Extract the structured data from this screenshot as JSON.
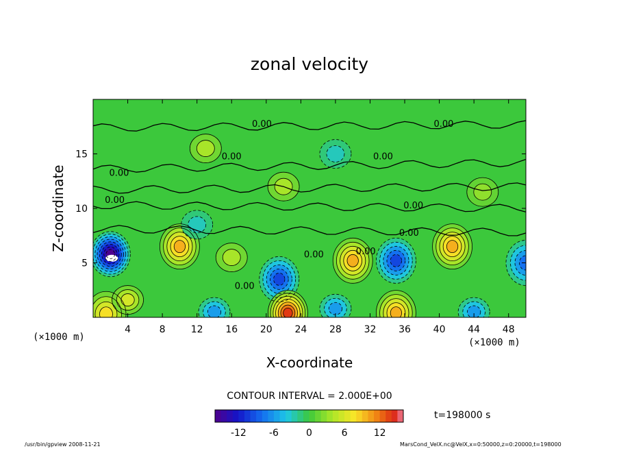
{
  "chart_data": {
    "type": "heatmap",
    "title": "zonal velocity",
    "xlabel": "X-coordinate",
    "ylabel": "Z-coordinate",
    "x_unit": "(×1000 m)",
    "x_unit_right": "(×1000 m)",
    "xlim": [
      0,
      50
    ],
    "ylim": [
      0,
      20
    ],
    "x_ticks": [
      4,
      8,
      12,
      16,
      20,
      24,
      28,
      32,
      36,
      40,
      44,
      48
    ],
    "y_ticks": [
      5,
      10,
      15
    ],
    "contour_interval_label": "CONTOUR INTERVAL = 2.000E+00",
    "time_label": "t=198000 s",
    "colorbar": {
      "range": [
        -16,
        16
      ],
      "ticks": [
        -12,
        -6,
        0,
        6,
        12
      ]
    },
    "contour_labels": [
      {
        "text": "0.00",
        "x": 19.5,
        "z": 17.5
      },
      {
        "text": "0.00",
        "x": 16.0,
        "z": 14.5
      },
      {
        "text": "0.00",
        "x": 3.0,
        "z": 13.0
      },
      {
        "text": "0.00",
        "x": 2.5,
        "z": 10.5
      },
      {
        "text": "0.00",
        "x": 33.5,
        "z": 14.5
      },
      {
        "text": "0.00",
        "x": 40.5,
        "z": 17.5
      },
      {
        "text": "0.00",
        "x": 37.0,
        "z": 10.0
      },
      {
        "text": "0.00",
        "x": 36.5,
        "z": 7.5
      },
      {
        "text": "0.00",
        "x": 31.5,
        "z": 5.8
      },
      {
        "text": "0.00",
        "x": 25.5,
        "z": 5.5
      },
      {
        "text": "0.00",
        "x": 17.5,
        "z": 2.6
      }
    ],
    "features": [
      {
        "sign": "negative",
        "x": 2.0,
        "z": 5.8,
        "peak": -16
      },
      {
        "sign": "positive",
        "x": 10.0,
        "z": 6.5,
        "peak": 10
      },
      {
        "sign": "positive",
        "x": 16.0,
        "z": 5.5,
        "peak": 4
      },
      {
        "sign": "negative",
        "x": 21.5,
        "z": 3.5,
        "peak": -10
      },
      {
        "sign": "positive",
        "x": 30.0,
        "z": 5.2,
        "peak": 10
      },
      {
        "sign": "negative",
        "x": 35.0,
        "z": 5.2,
        "peak": -10
      },
      {
        "sign": "positive",
        "x": 41.5,
        "z": 6.5,
        "peak": 10
      },
      {
        "sign": "negative",
        "x": 50.0,
        "z": 5.0,
        "peak": -8
      },
      {
        "sign": "positive",
        "x": 22.5,
        "z": 0.4,
        "peak": 14
      },
      {
        "sign": "positive",
        "x": 35.0,
        "z": 0.4,
        "peak": 10
      },
      {
        "sign": "positive",
        "x": 1.5,
        "z": 0.3,
        "peak": 8
      },
      {
        "sign": "positive",
        "x": 4.0,
        "z": 1.6,
        "peak": 6
      },
      {
        "sign": "negative",
        "x": 14.0,
        "z": 0.5,
        "peak": -6
      },
      {
        "sign": "negative",
        "x": 28.0,
        "z": 0.8,
        "peak": -6
      },
      {
        "sign": "negative",
        "x": 44.0,
        "z": 0.5,
        "peak": -6
      },
      {
        "sign": "positive",
        "x": 13.0,
        "z": 15.5,
        "peak": 4
      },
      {
        "sign": "positive",
        "x": 22.0,
        "z": 12.0,
        "peak": 4
      },
      {
        "sign": "negative",
        "x": 28.0,
        "z": 15.0,
        "peak": -3
      },
      {
        "sign": "negative",
        "x": 12.0,
        "z": 8.5,
        "peak": -3
      },
      {
        "sign": "positive",
        "x": 45.0,
        "z": 11.5,
        "peak": 3
      }
    ]
  },
  "footer": {
    "left": "/usr/bin/gpview  2008-11-21",
    "right": "MarsCond_VelX.nc@VelX,x=0:50000,z=0:20000,t=198000"
  },
  "colors": {
    "background_field": "#3cc83c",
    "extreme_negative": "#ffffff",
    "extreme_positive": "#e04a10"
  }
}
